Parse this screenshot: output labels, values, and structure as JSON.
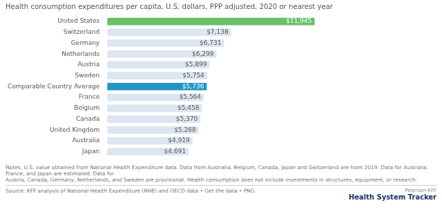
{
  "chart_data": {
    "type": "bar",
    "orientation": "horizontal",
    "title": "Health consumption expenditures per capita, U.S. dollars, PPP adjusted, 2020 or nearest year",
    "categories": [
      "United States",
      "Switzerland",
      "Germany",
      "Netherlands",
      "Austria",
      "Sweden",
      "Comparable Country Average",
      "France",
      "Belgium",
      "Canada",
      "United Kingdom",
      "Australia",
      "Japan"
    ],
    "values": [
      11945,
      7138,
      6731,
      6299,
      5899,
      5754,
      5736,
      5564,
      5458,
      5370,
      5268,
      4919,
      4691
    ],
    "value_labels": [
      "$11,945",
      "$7,138",
      "$6,731",
      "$6,299",
      "$5,899",
      "$5,754",
      "$5,736",
      "$5,564",
      "$5,458",
      "$5,370",
      "$5,268",
      "$4,919",
      "$4,691"
    ],
    "colors": [
      "#6abf69",
      "#dce6f0",
      "#dce6f0",
      "#dce6f0",
      "#dce6f0",
      "#dce6f0",
      "#2196c4",
      "#dce6f0",
      "#dce6f0",
      "#dce6f0",
      "#dce6f0",
      "#dce6f0",
      "#dce6f0"
    ],
    "xlim": [
      0,
      13000
    ],
    "grid": false,
    "data_labels": true,
    "tick_labels": "y",
    "annotations": [
      "Notes: U.S. value obtained from National Health Expenditure data. Data from Australia, Belgium, Canada, Japan and Switzerland are from 2019. Data for Australia, France, and Japan are estimated. Data for",
      "Austria, Canada, Germany, Netherlands, and Sweden are provisional. Health consumption does not include investments in structures, equipment, or research.",
      "Source: KFF analysis of National Health Expenditure (NHE) and OECD data • Get the data • PNG",
      "Peterson-KFF",
      "Health System Tracker"
    ]
  }
}
